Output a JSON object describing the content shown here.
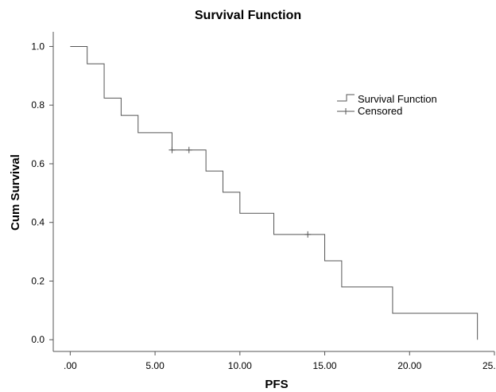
{
  "chart_data": {
    "type": "line",
    "title": "Survival Function",
    "xlabel": "PFS",
    "ylabel": "Cum Survival",
    "xlim": [
      -1,
      25
    ],
    "ylim": [
      -0.04,
      1.05
    ],
    "x_ticks": [
      0,
      5,
      10,
      15,
      20,
      25
    ],
    "x_tick_labels": [
      ".00",
      "5.00",
      "10.00",
      "15.00",
      "20.00",
      "25.00"
    ],
    "y_ticks": [
      0,
      0.2,
      0.4,
      0.6,
      0.8,
      1.0
    ],
    "y_tick_labels": [
      "0.0",
      "0.2",
      "0.4",
      "0.6",
      "0.8",
      "1.0"
    ],
    "grid": false,
    "legend_position": "top-right",
    "series": [
      {
        "name": "Survival Function",
        "kind": "step",
        "color": "#555555",
        "times": [
          0,
          1,
          2,
          3,
          4,
          6,
          8,
          9,
          10,
          12,
          15,
          16,
          19,
          24
        ],
        "survival": [
          1.0,
          0.941,
          0.824,
          0.765,
          0.706,
          0.647,
          0.575,
          0.503,
          0.431,
          0.359,
          0.269,
          0.18,
          0.09,
          0.0
        ],
        "end_time": 24
      },
      {
        "name": "Censored",
        "kind": "censor",
        "color": "#555555",
        "points": [
          {
            "x": 6,
            "y": 0.647
          },
          {
            "x": 7,
            "y": 0.647
          },
          {
            "x": 14,
            "y": 0.359
          }
        ]
      }
    ]
  }
}
